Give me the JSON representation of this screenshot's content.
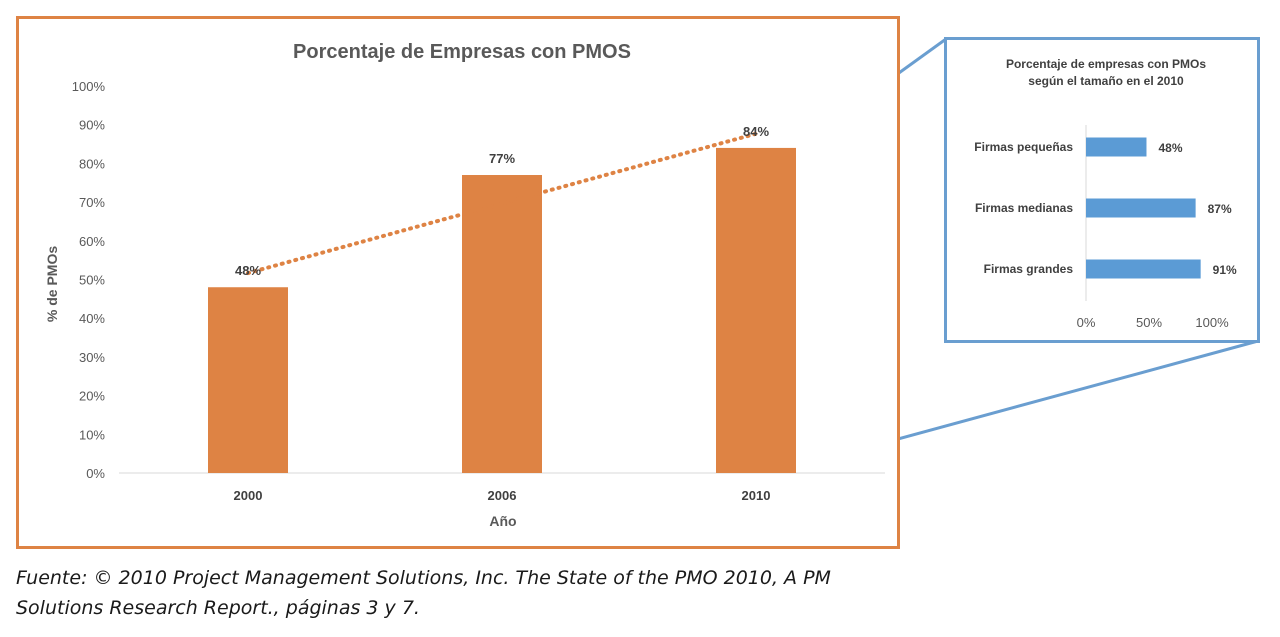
{
  "chart_data": [
    {
      "type": "bar",
      "title": "Porcentaje de Empresas con PMOS",
      "xlabel": "Año",
      "ylabel": "% de PMOs",
      "categories": [
        "2000",
        "2006",
        "2010"
      ],
      "values": [
        48,
        77,
        84
      ],
      "data_labels": [
        "48%",
        "77%",
        "84%"
      ],
      "ylim": [
        0,
        100
      ],
      "y_ticks": [
        "0%",
        "10%",
        "20%",
        "30%",
        "40%",
        "50%",
        "60%",
        "70%",
        "80%",
        "90%",
        "100%"
      ],
      "trendline": "linear, dotted",
      "grid": false,
      "colors": {
        "bar": "#DE8344",
        "trend": "#DE8344",
        "frame": "#DE8344"
      }
    },
    {
      "type": "bar",
      "orientation": "horizontal",
      "title": [
        "Porcentaje de  empresas con PMOs",
        "según el tamaño en el 2010"
      ],
      "categories": [
        "Firmas pequeñas",
        "Firmas medianas",
        "Firmas grandes"
      ],
      "values": [
        48,
        87,
        91
      ],
      "data_labels": [
        "48%",
        "87%",
        "91%"
      ],
      "xlim": [
        0,
        100
      ],
      "x_ticks": [
        "0%",
        "50%",
        "100%"
      ],
      "grid": false,
      "colors": {
        "bar": "#5B9BD5",
        "frame": "#6A9ED0"
      }
    }
  ],
  "source_note": {
    "line1": "Fuente: © 2010 Project Management Solutions, Inc. The State of the PMO 2010, A PM",
    "line2": "Solutions Research Report., páginas 3 y 7."
  }
}
